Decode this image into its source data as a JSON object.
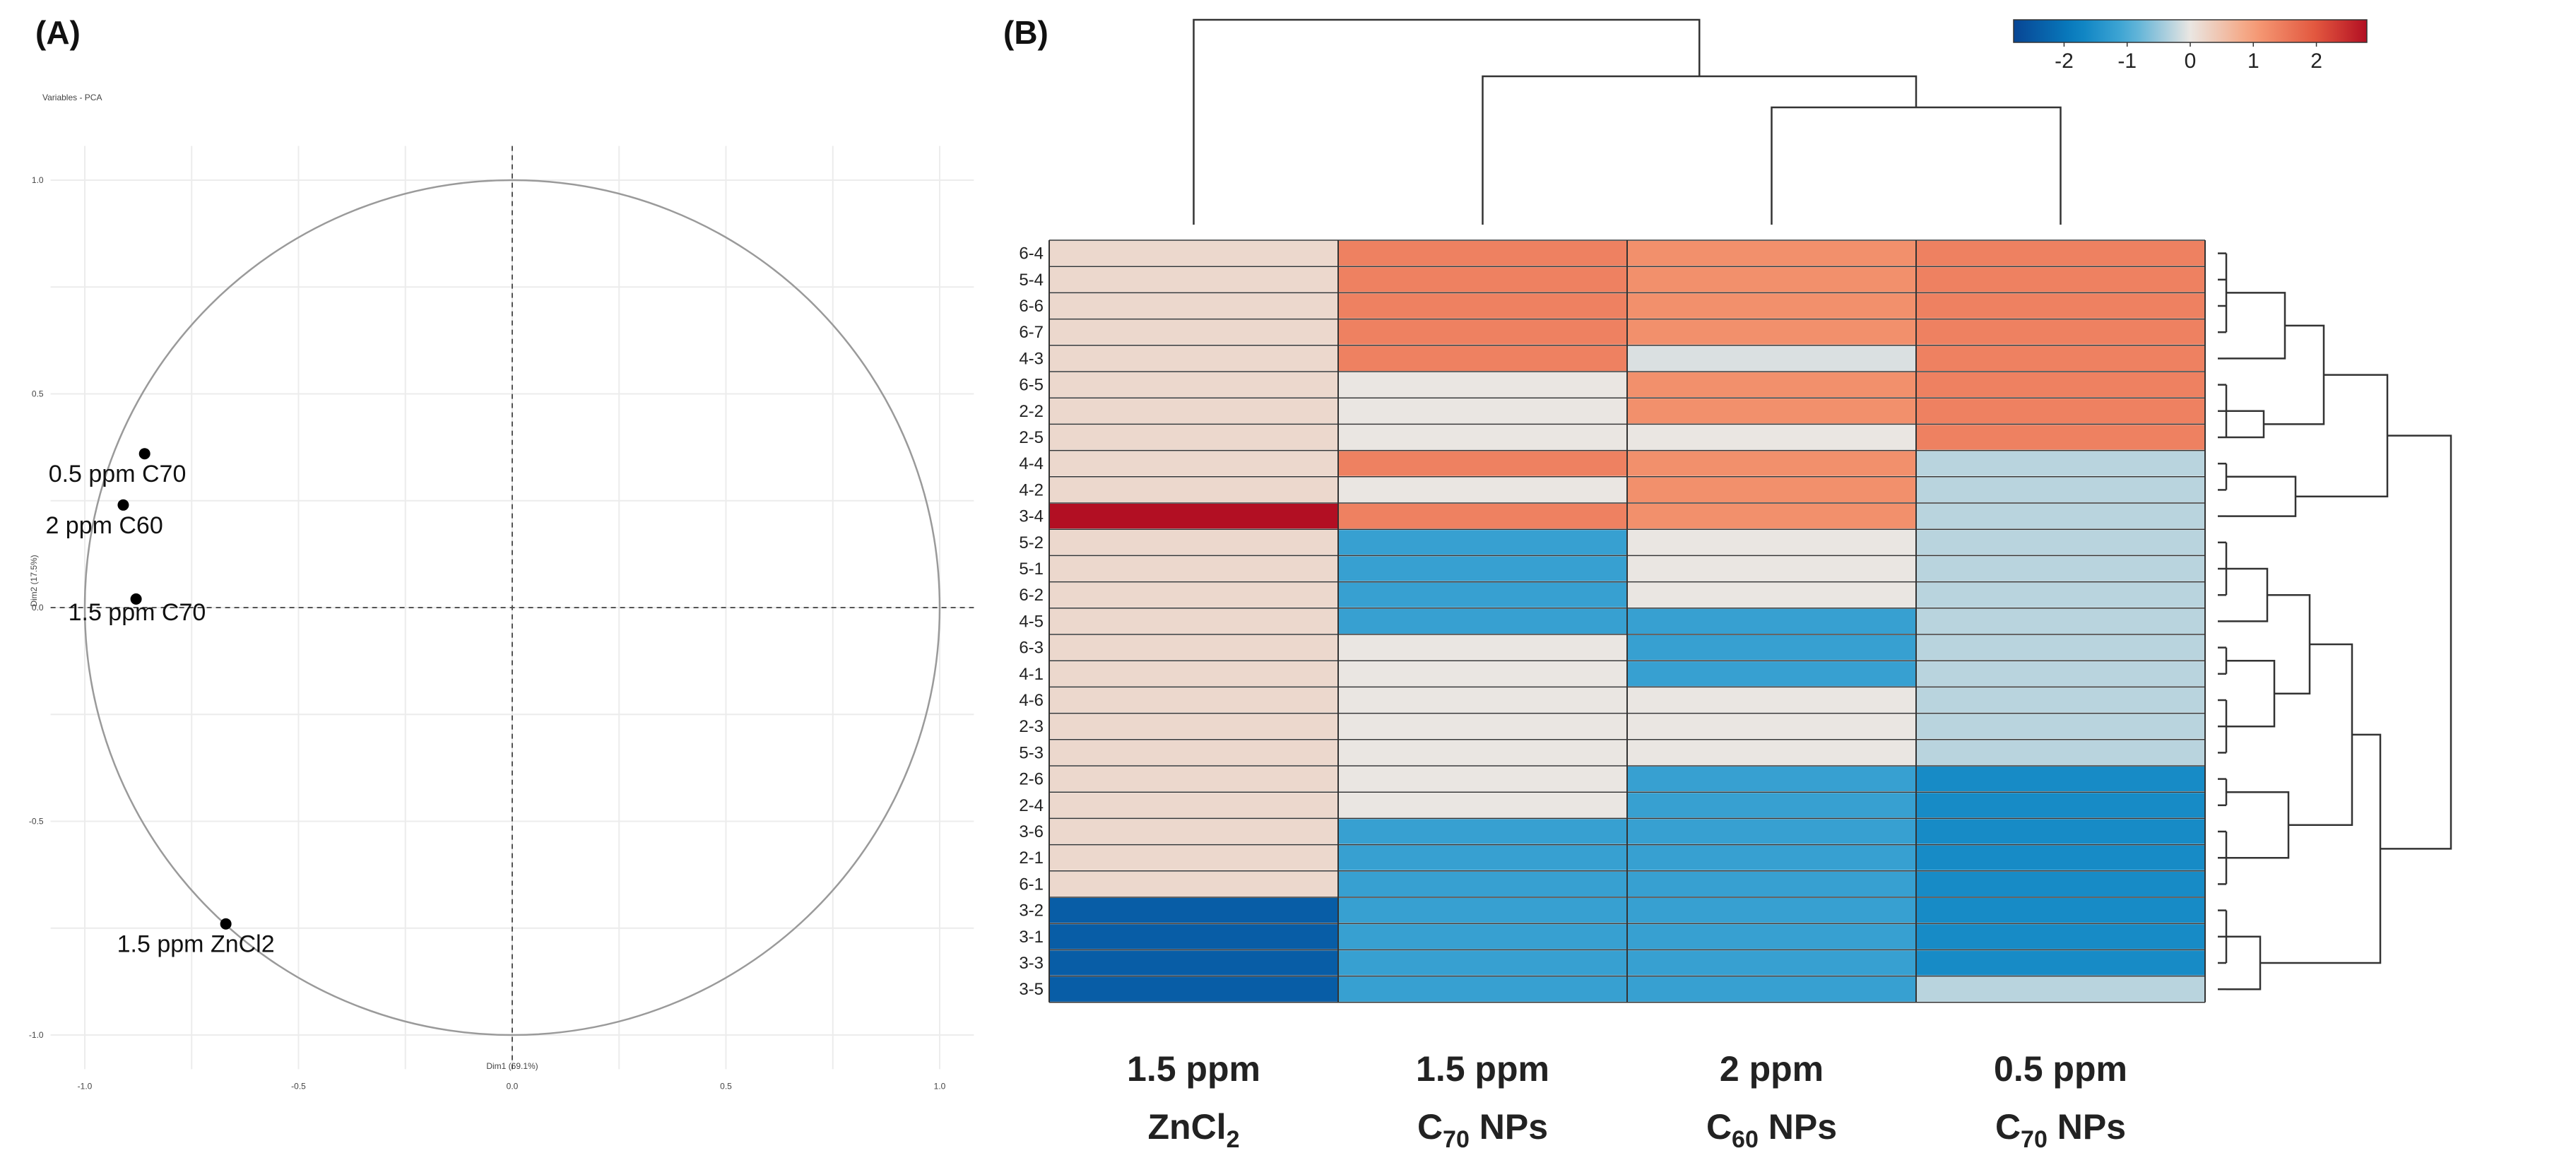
{
  "chart_data": [
    {
      "panel": "(A)",
      "type": "scatter",
      "title": "Variables - PCA",
      "xlabel": "Dim1 (69.1%)",
      "ylabel": "Dim2 (17.5%)",
      "xlim": [
        -1.0,
        1.0
      ],
      "ylim": [
        -1.0,
        1.0
      ],
      "xticks": [
        "-1.0",
        "-0.5",
        "0.0",
        "0.5",
        "1.0"
      ],
      "yticks": [
        "1.0",
        "0.5",
        "0.0",
        "-0.5",
        "-1.0"
      ],
      "xtick_values": [
        -1.0,
        -0.5,
        0.0,
        0.5,
        1.0
      ],
      "ytick_values": [
        1.0,
        0.5,
        0.0,
        -0.5,
        -1.0
      ],
      "points": [
        {
          "label": "0.5 ppm C70",
          "x": -0.86,
          "y": 0.36
        },
        {
          "label": "2 ppm C60",
          "x": -0.91,
          "y": 0.24
        },
        {
          "label": "1.5 ppm C70",
          "x": -0.88,
          "y": 0.02
        },
        {
          "label": "1.5 ppm ZnCl2",
          "x": -0.67,
          "y": -0.74
        }
      ]
    },
    {
      "panel": "(B)",
      "type": "heatmap",
      "legend": {
        "ticks": [
          "-2",
          "-1",
          "0",
          "1",
          "2"
        ],
        "tick_values": [
          -2,
          -1,
          0,
          1,
          2
        ],
        "range": [
          -2.8,
          2.8
        ]
      },
      "columns": [
        {
          "line1": "1.5 ppm",
          "line2": "ZnCl",
          "sub": "2",
          "tail": ""
        },
        {
          "line1": "1.5 ppm",
          "line2": "C",
          "sub": "70",
          "tail": " NPs"
        },
        {
          "line1": "2 ppm",
          "line2": "C",
          "sub": "60",
          "tail": " NPs"
        },
        {
          "line1": "0.5 ppm",
          "line2": "C",
          "sub": "70",
          "tail": " NPs"
        }
      ],
      "rows": [
        "6-4",
        "5-4",
        "6-6",
        "6-7",
        "4-3",
        "6-5",
        "2-2",
        "2-5",
        "4-4",
        "4-2",
        "3-4",
        "5-2",
        "5-1",
        "6-2",
        "4-5",
        "6-3",
        "4-1",
        "4-6",
        "2-3",
        "5-3",
        "2-6",
        "2-4",
        "3-6",
        "2-1",
        "6-1",
        "3-2",
        "3-1",
        "3-3",
        "3-5"
      ],
      "values": [
        [
          0.2,
          1.4,
          1.2,
          1.4
        ],
        [
          0.2,
          1.4,
          1.2,
          1.4
        ],
        [
          0.2,
          1.4,
          1.2,
          1.4
        ],
        [
          0.2,
          1.4,
          1.2,
          1.4
        ],
        [
          0.2,
          1.4,
          -0.1,
          1.4
        ],
        [
          0.2,
          0.0,
          1.2,
          1.4
        ],
        [
          0.2,
          0.0,
          1.2,
          1.4
        ],
        [
          0.2,
          0.0,
          0.0,
          1.4
        ],
        [
          0.2,
          1.4,
          1.2,
          -0.3
        ],
        [
          0.2,
          0.0,
          1.2,
          -0.3
        ],
        [
          2.8,
          1.4,
          1.2,
          -0.3
        ],
        [
          0.2,
          -1.2,
          0.0,
          -0.3
        ],
        [
          0.2,
          -1.2,
          0.0,
          -0.3
        ],
        [
          0.2,
          -1.2,
          0.0,
          -0.3
        ],
        [
          0.2,
          -1.2,
          -1.2,
          -0.3
        ],
        [
          0.2,
          0.0,
          -1.2,
          -0.3
        ],
        [
          0.2,
          0.0,
          -1.2,
          -0.3
        ],
        [
          0.2,
          0.0,
          0.0,
          -0.3
        ],
        [
          0.2,
          0.0,
          0.0,
          -0.3
        ],
        [
          0.2,
          0.0,
          0.0,
          -0.3
        ],
        [
          0.2,
          0.0,
          -1.2,
          -1.6
        ],
        [
          0.2,
          0.0,
          -1.2,
          -1.6
        ],
        [
          0.2,
          -1.2,
          -1.2,
          -1.6
        ],
        [
          0.2,
          -1.2,
          -1.2,
          -1.6
        ],
        [
          0.2,
          -1.2,
          -1.2,
          -1.6
        ],
        [
          -2.4,
          -1.2,
          -1.2,
          -1.6
        ],
        [
          -2.4,
          -1.2,
          -1.2,
          -1.6
        ],
        [
          -2.4,
          -1.2,
          -1.2,
          -1.6
        ],
        [
          -2.4,
          -1.2,
          -1.2,
          -0.3
        ]
      ]
    }
  ]
}
